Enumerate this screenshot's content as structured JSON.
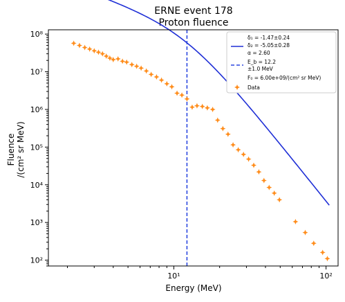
{
  "chart_data": {
    "type": "scatter",
    "title": "ERNE event 178",
    "subtitle": "Proton fluence",
    "xlabel": "Energy (MeV)",
    "ylabel_line1": "Fluence",
    "ylabel_line2": "/(cm² sr MeV)",
    "xscale": "log",
    "yscale": "log",
    "xlim": [
      1.5,
      120
    ],
    "ylim": [
      70,
      130000000
    ],
    "x_ticks": [
      {
        "value": 10,
        "label": "10¹"
      },
      {
        "value": 100,
        "label": "10²"
      }
    ],
    "y_ticks": [
      {
        "value": 100,
        "label": "10²"
      },
      {
        "value": 1000,
        "label": "10³"
      },
      {
        "value": 10000,
        "label": "10⁴"
      },
      {
        "value": 100000,
        "label": "10⁵"
      },
      {
        "value": 1000000,
        "label": "10⁶"
      },
      {
        "value": 10000000,
        "label": "10⁷"
      },
      {
        "value": 100000000,
        "label": "10⁸"
      }
    ],
    "break_energy": 12.2,
    "fit_params": {
      "delta1": -1.47,
      "delta2": -5.05,
      "alpha": 2.6,
      "F0": 6000000000.0
    },
    "fit_color": "#1f2fd6",
    "break_color": "#2b47e0",
    "data_color": "#ff8c1a",
    "fit_x_range": [
      2.2,
      105
    ],
    "data": {
      "name": "Data",
      "x": [
        2.2,
        2.4,
        2.6,
        2.8,
        3.0,
        3.2,
        3.4,
        3.6,
        3.8,
        4.0,
        4.3,
        4.6,
        4.9,
        5.3,
        5.7,
        6.1,
        6.6,
        7.1,
        7.7,
        8.3,
        9.0,
        9.7,
        10.5,
        11.3,
        12.2,
        13.2,
        14.2,
        15.4,
        16.6,
        18.0,
        19.4,
        21.0,
        22.7,
        24.5,
        26.5,
        28.7,
        31.0,
        33.5,
        36.2,
        39.1,
        42.3,
        45.7,
        49.4,
        63.0,
        73.0,
        83.0,
        95.0,
        102.0
      ],
      "y": [
        57000000.0,
        50000000.0,
        44000000.0,
        40000000.0,
        36000000.0,
        33000000.0,
        30000000.0,
        26000000.0,
        23000000.0,
        21000000.0,
        22000000.0,
        19000000.0,
        18000000.0,
        15500000.0,
        14000000.0,
        12500000.0,
        10500000.0,
        8500000.0,
        7300000.0,
        6000000.0,
        4800000.0,
        4000000.0,
        2700000.0,
        2400000.0,
        1900000.0,
        1150000.0,
        1250000.0,
        1200000.0,
        1100000.0,
        1000000.0,
        520000.0,
        310000.0,
        220000.0,
        115000.0,
        85000.0,
        64000.0,
        48000.0,
        33000.0,
        22000.0,
        13000.0,
        8500.0,
        6000.0,
        4000.0,
        1050.0,
        540.0,
        280.0,
        160.0,
        110.0
      ]
    },
    "legend": {
      "placement": "top-right",
      "fit_line1": "δ₁ = -1.47±0.24",
      "fit_line2": "δ₂ = -5.05±0.28",
      "fit_line3": "α = 2.60",
      "break_line1": "E_b = 12.2",
      "break_line2": "±1.0 MeV",
      "f0_line": "F₀ = 6.00e+09/(cm² sr MeV)",
      "data_label": "Data"
    }
  }
}
